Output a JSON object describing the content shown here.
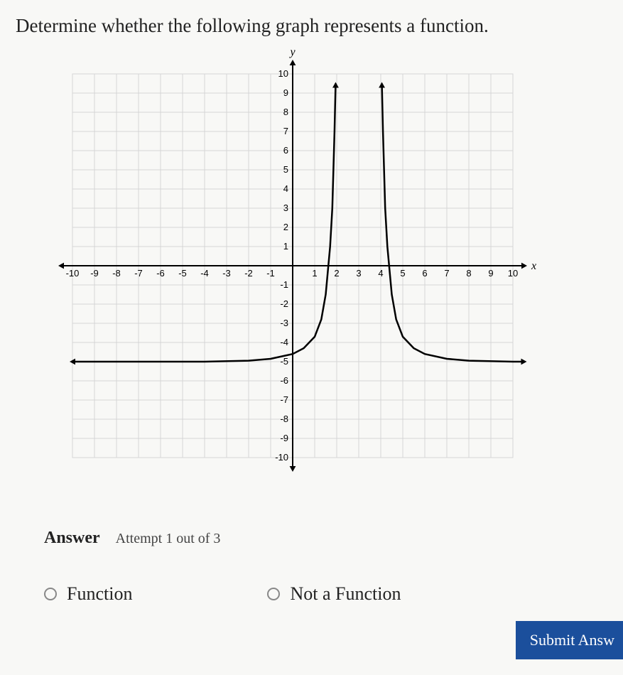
{
  "question_text": "Determine whether the following graph represents a function.",
  "chart": {
    "type": "line",
    "title": "",
    "y_axis_label": "y",
    "x_axis_label": "x",
    "xlim": [
      -10,
      10
    ],
    "ylim": [
      -10,
      10
    ],
    "xtick_step": 1,
    "ytick_step": 1,
    "x_ticks": [
      -10,
      -9,
      -8,
      -7,
      -6,
      -5,
      -4,
      -3,
      -2,
      -1,
      1,
      2,
      3,
      4,
      5,
      6,
      7,
      8,
      9,
      10
    ],
    "y_ticks": [
      -10,
      -9,
      -8,
      -7,
      -6,
      -5,
      -4,
      -3,
      -2,
      -1,
      1,
      2,
      3,
      4,
      5,
      6,
      7,
      8,
      9,
      10
    ],
    "grid_color": "#d6d6d6",
    "axis_color": "#000000",
    "curve_color": "#000000",
    "background_color": "#f8f8f6",
    "line_width": 2.5,
    "tick_fontsize": 13,
    "axis_label_fontsize": 16,
    "left_asymptote_x": 2,
    "right_asymptote_x": 4,
    "horizontal_asymptote_y": -5,
    "left_branch": [
      [
        -10,
        -5
      ],
      [
        -8,
        -5
      ],
      [
        -6,
        -5
      ],
      [
        -4,
        -5
      ],
      [
        -2,
        -4.95
      ],
      [
        -1,
        -4.85
      ],
      [
        0,
        -4.6
      ],
      [
        0.5,
        -4.3
      ],
      [
        1,
        -3.7
      ],
      [
        1.3,
        -2.8
      ],
      [
        1.5,
        -1.5
      ],
      [
        1.7,
        1
      ],
      [
        1.8,
        3
      ],
      [
        1.85,
        5
      ],
      [
        1.9,
        7
      ],
      [
        1.95,
        9.5
      ]
    ],
    "right_branch": [
      [
        4.05,
        9.5
      ],
      [
        4.1,
        7
      ],
      [
        4.15,
        5
      ],
      [
        4.2,
        3
      ],
      [
        4.3,
        1
      ],
      [
        4.5,
        -1.5
      ],
      [
        4.7,
        -2.8
      ],
      [
        5,
        -3.7
      ],
      [
        5.5,
        -4.3
      ],
      [
        6,
        -4.6
      ],
      [
        7,
        -4.85
      ],
      [
        8,
        -4.95
      ],
      [
        10,
        -5
      ],
      [
        10.5,
        -5
      ]
    ],
    "arrows": {
      "x_neg": true,
      "x_pos": true,
      "y_neg": true,
      "y_pos": true,
      "left_branch_left": true,
      "left_branch_top": true,
      "right_branch_top": true,
      "right_branch_right": true
    }
  },
  "answer": {
    "label": "Answer",
    "attempt_text": "Attempt 1 out of 3"
  },
  "options": {
    "opt_function": "Function",
    "opt_not_function": "Not a Function"
  },
  "submit_label": "Submit Answ"
}
